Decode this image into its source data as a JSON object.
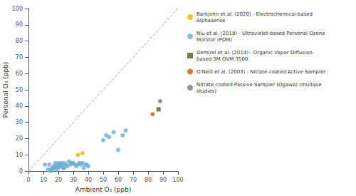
{
  "chart_data": {
    "type": "scatter",
    "xlabel": "Ambient O₃ (ppb)",
    "ylabel": "Personal O₃ (ppb)",
    "xlim": [
      0,
      100
    ],
    "ylim": [
      0,
      100
    ],
    "xticks": [
      0,
      10,
      20,
      30,
      40,
      50,
      60,
      70,
      80,
      90,
      100
    ],
    "yticks": [
      0,
      10,
      20,
      30,
      40,
      50,
      60,
      70,
      80,
      90,
      100
    ],
    "grid": false,
    "legend": "right",
    "series": [
      {
        "name": "Barkjohn et al. (2020) - Electrochemical-based\nAlphasense",
        "color": "#e6b800",
        "marker": "circle",
        "x": [
          33,
          36
        ],
        "y": [
          10,
          11
        ]
      },
      {
        "name": "Niu et al. (2018) - Ultraviolet-based Personal Ozone\nMonitor (POM)",
        "color": "#6baed6",
        "marker": "circle",
        "x": [
          11,
          13,
          14,
          15,
          15,
          16,
          16,
          17,
          17,
          18,
          18,
          18,
          19,
          19,
          20,
          20,
          20,
          21,
          21,
          22,
          22,
          23,
          23,
          24,
          24,
          25,
          26,
          27,
          28,
          29,
          30,
          31,
          32,
          33,
          34,
          35,
          36,
          37,
          38,
          39,
          40,
          50,
          52,
          54,
          57,
          60,
          63,
          65
        ],
        "y": [
          4,
          1,
          4,
          0,
          1,
          1,
          2,
          2,
          3,
          2,
          3,
          5,
          1,
          2,
          2,
          4,
          5,
          3,
          4,
          3,
          5,
          2,
          4,
          2,
          5,
          4,
          3,
          6,
          4,
          5,
          5,
          4,
          3,
          4,
          5,
          4,
          5,
          2,
          4,
          4,
          3,
          19,
          22,
          21,
          24,
          13,
          22,
          25
        ]
      },
      {
        "name": "Demirel et al. (2014) - Organic Vapor Diffusion-\nbased 3M OVM 3500",
        "color": "#4a5e2a",
        "marker": "square",
        "x": [
          87
        ],
        "y": [
          38
        ]
      },
      {
        "name": "O'Neill et al. (2003) - Nitrate-coated Active Sampler",
        "color": "#c85a00",
        "marker": "circle",
        "x": [
          83
        ],
        "y": [
          35
        ]
      },
      {
        "name": "Nitrate-coated Passive Sampler (Ogawa) (multiple\nstudies)",
        "color": "#777777",
        "marker": "circle",
        "x": [
          88
        ],
        "y": [
          43
        ]
      }
    ]
  }
}
